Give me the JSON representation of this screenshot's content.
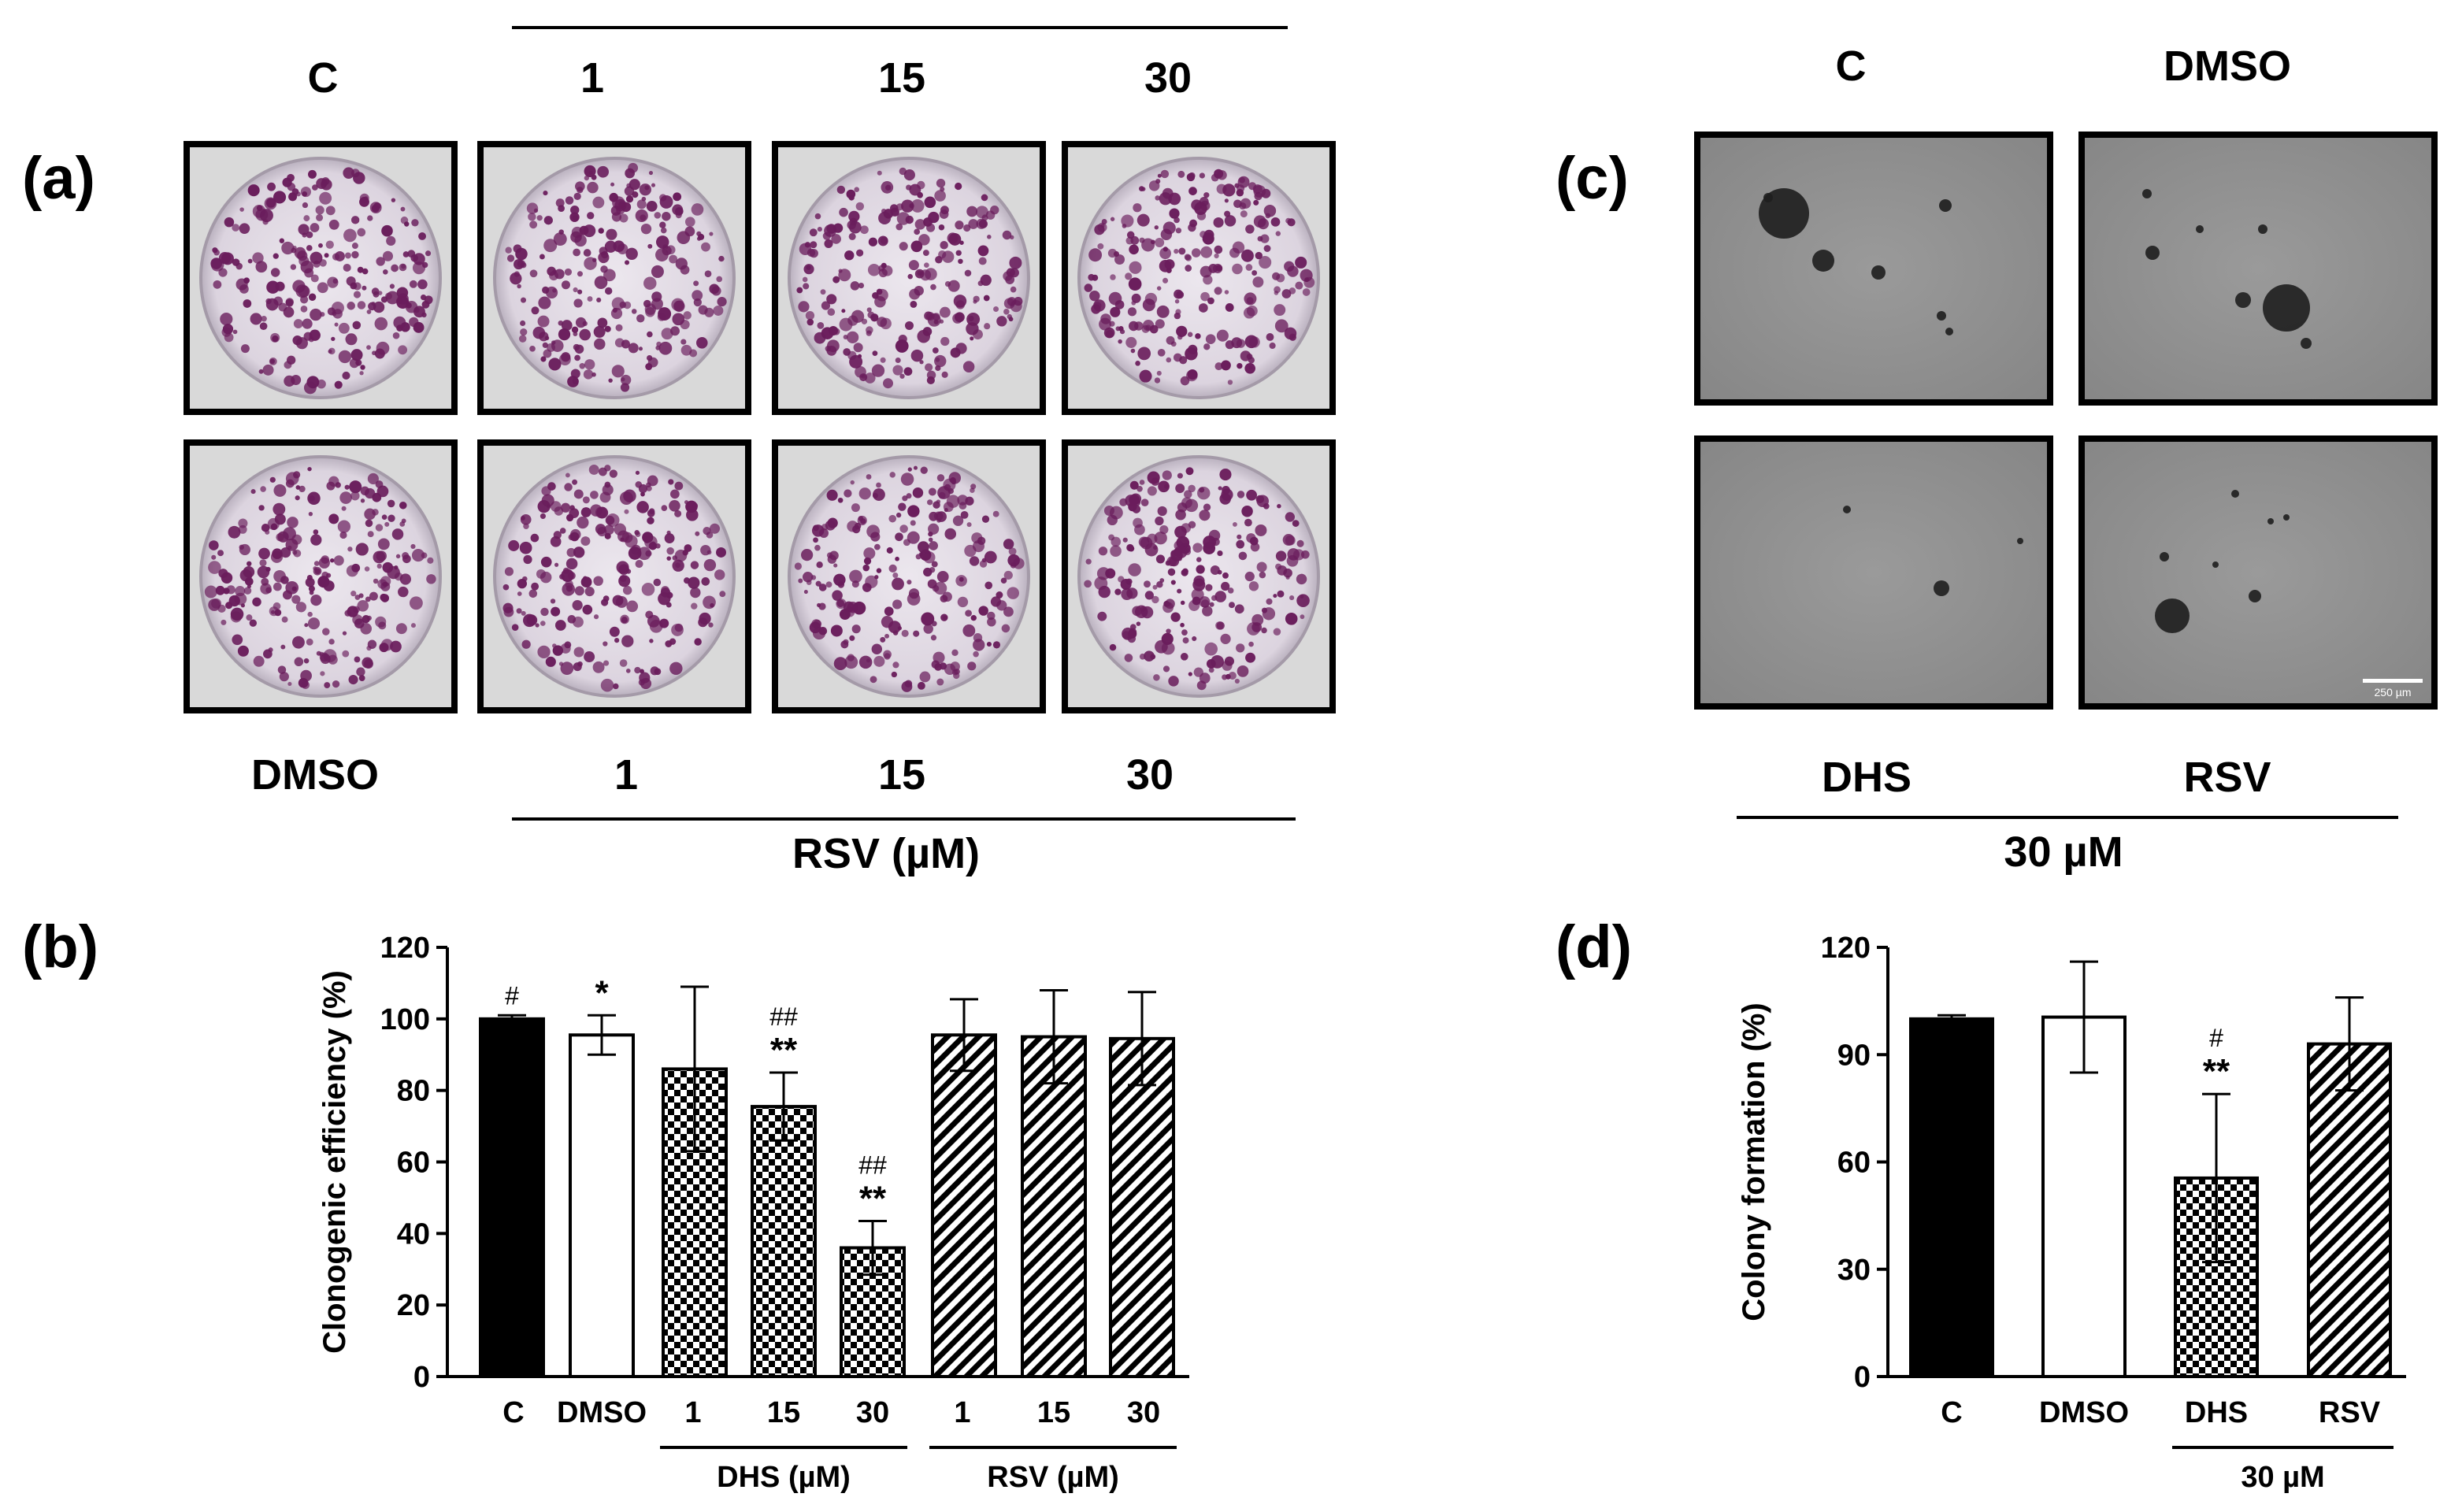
{
  "panels": {
    "a": {
      "label": "(a)",
      "top_labels": [
        "C",
        "1",
        "15",
        "30"
      ],
      "bottom_labels": [
        "DMSO",
        "1",
        "15",
        "30"
      ],
      "group_label": "RSV (µM)",
      "dish_color": "#6a1d5c"
    },
    "c": {
      "label": "(c)",
      "top_labels": [
        "C",
        "DMSO"
      ],
      "bottom_labels": [
        "DHS",
        "RSV"
      ],
      "group_label": "30 µM",
      "scale_bar_text": "250 µm"
    }
  },
  "chart_data": [
    {
      "panel": "(b)",
      "type": "bar",
      "ylabel": "Clonogenic efficiency (%)",
      "ylim": [
        0,
        120
      ],
      "yticks": [
        0,
        20,
        40,
        60,
        80,
        100,
        120
      ],
      "categories": [
        "C",
        "DMSO",
        "1",
        "15",
        "30",
        "1",
        "15",
        "30"
      ],
      "values": [
        100,
        95.5,
        86,
        75.5,
        36,
        95.5,
        95,
        94.5
      ],
      "errors": [
        1,
        5.5,
        23,
        9.5,
        7.5,
        10,
        13,
        13
      ],
      "fills": [
        "solid",
        "open",
        "checker",
        "checker",
        "checker",
        "hatch",
        "hatch",
        "hatch"
      ],
      "annotations": [
        {
          "index": 0,
          "lines": [
            "#"
          ]
        },
        {
          "index": 1,
          "lines": [
            "*"
          ]
        },
        {
          "index": 3,
          "lines": [
            "##",
            "**"
          ]
        },
        {
          "index": 4,
          "lines": [
            "##",
            "**"
          ]
        }
      ],
      "groups": [
        {
          "label": "DHS (µM)",
          "from": 2,
          "to": 4
        },
        {
          "label": "RSV (µM)",
          "from": 5,
          "to": 7
        }
      ]
    },
    {
      "panel": "(d)",
      "type": "bar",
      "ylabel": "Colony formation (%)",
      "ylim": [
        0,
        120
      ],
      "yticks": [
        0,
        30,
        60,
        90,
        120
      ],
      "categories": [
        "C",
        "DMSO",
        "DHS",
        "RSV"
      ],
      "values": [
        100,
        100.5,
        55.5,
        93
      ],
      "errors": [
        1,
        15.5,
        23.5,
        13
      ],
      "fills": [
        "solid",
        "open",
        "checker",
        "hatch"
      ],
      "annotations": [
        {
          "index": 2,
          "lines": [
            "#",
            "**"
          ]
        }
      ],
      "groups": [
        {
          "label": "30 µM",
          "from": 2,
          "to": 3
        }
      ]
    }
  ]
}
